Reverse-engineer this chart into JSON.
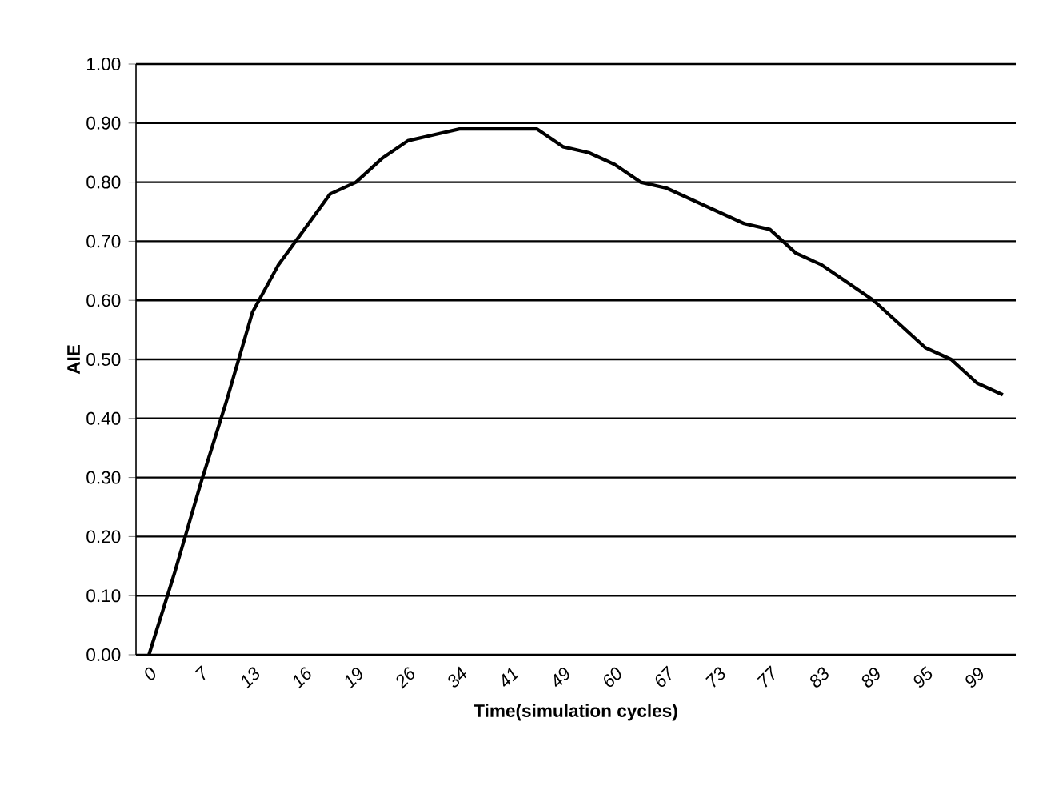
{
  "chart_data": {
    "type": "line",
    "xlabel": "Time(simulation cycles)",
    "ylabel": "AIE",
    "categories": [
      "0",
      null,
      "7",
      null,
      "13",
      null,
      "16",
      null,
      "19",
      null,
      "26",
      null,
      "34",
      null,
      "41",
      null,
      "49",
      null,
      "60",
      null,
      "67",
      null,
      "73",
      null,
      "77",
      null,
      "83",
      null,
      "89",
      null,
      "95",
      null,
      "99",
      null
    ],
    "series": [
      {
        "color": "#000000",
        "values": [
          0.0,
          0.14,
          0.29,
          0.43,
          0.58,
          0.66,
          0.72,
          0.78,
          0.8,
          0.84,
          0.87,
          0.88,
          0.89,
          0.89,
          0.89,
          0.89,
          0.86,
          0.85,
          0.83,
          0.8,
          0.79,
          0.77,
          0.75,
          0.73,
          0.72,
          0.68,
          0.66,
          0.63,
          0.6,
          0.56,
          0.52,
          0.5,
          0.46,
          0.44
        ]
      }
    ],
    "ylim": [
      0,
      1
    ],
    "yticks": [
      {
        "value": 0,
        "label": "0.00"
      },
      {
        "value": 0.1,
        "label": "0.10"
      },
      {
        "value": 0.2,
        "label": "0.20"
      },
      {
        "value": 0.3,
        "label": "0.30"
      },
      {
        "value": 0.4,
        "label": "0.40"
      },
      {
        "value": 0.5,
        "label": "0.50"
      },
      {
        "value": 0.6,
        "label": "0.60"
      },
      {
        "value": 0.7,
        "label": "0.70"
      },
      {
        "value": 0.8,
        "label": "0.80"
      },
      {
        "value": 0.9,
        "label": "0.90"
      },
      {
        "value": 1,
        "label": "1.00"
      }
    ],
    "grid": "y",
    "marker": "none",
    "line_style": "solid"
  }
}
